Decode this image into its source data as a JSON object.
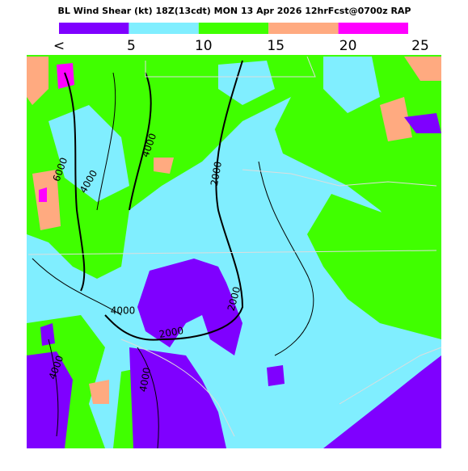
{
  "header": {
    "title": "BL Wind Shear (kt) 18Z(13cdt) MON 13 Apr 2026 12hrFcst@0700z RAP"
  },
  "legend": {
    "colors": [
      "#7f00ff",
      "#80eeff",
      "#40ff00",
      "#ffaa80",
      "#ff00ff"
    ],
    "labels": [
      "<",
      "5",
      "10",
      "15",
      "20",
      "25"
    ]
  },
  "map": {
    "contour_labels": [
      "6000",
      "4000",
      "4000",
      "2000",
      "2000",
      "4000",
      "2000",
      "4000",
      "4000"
    ]
  }
}
